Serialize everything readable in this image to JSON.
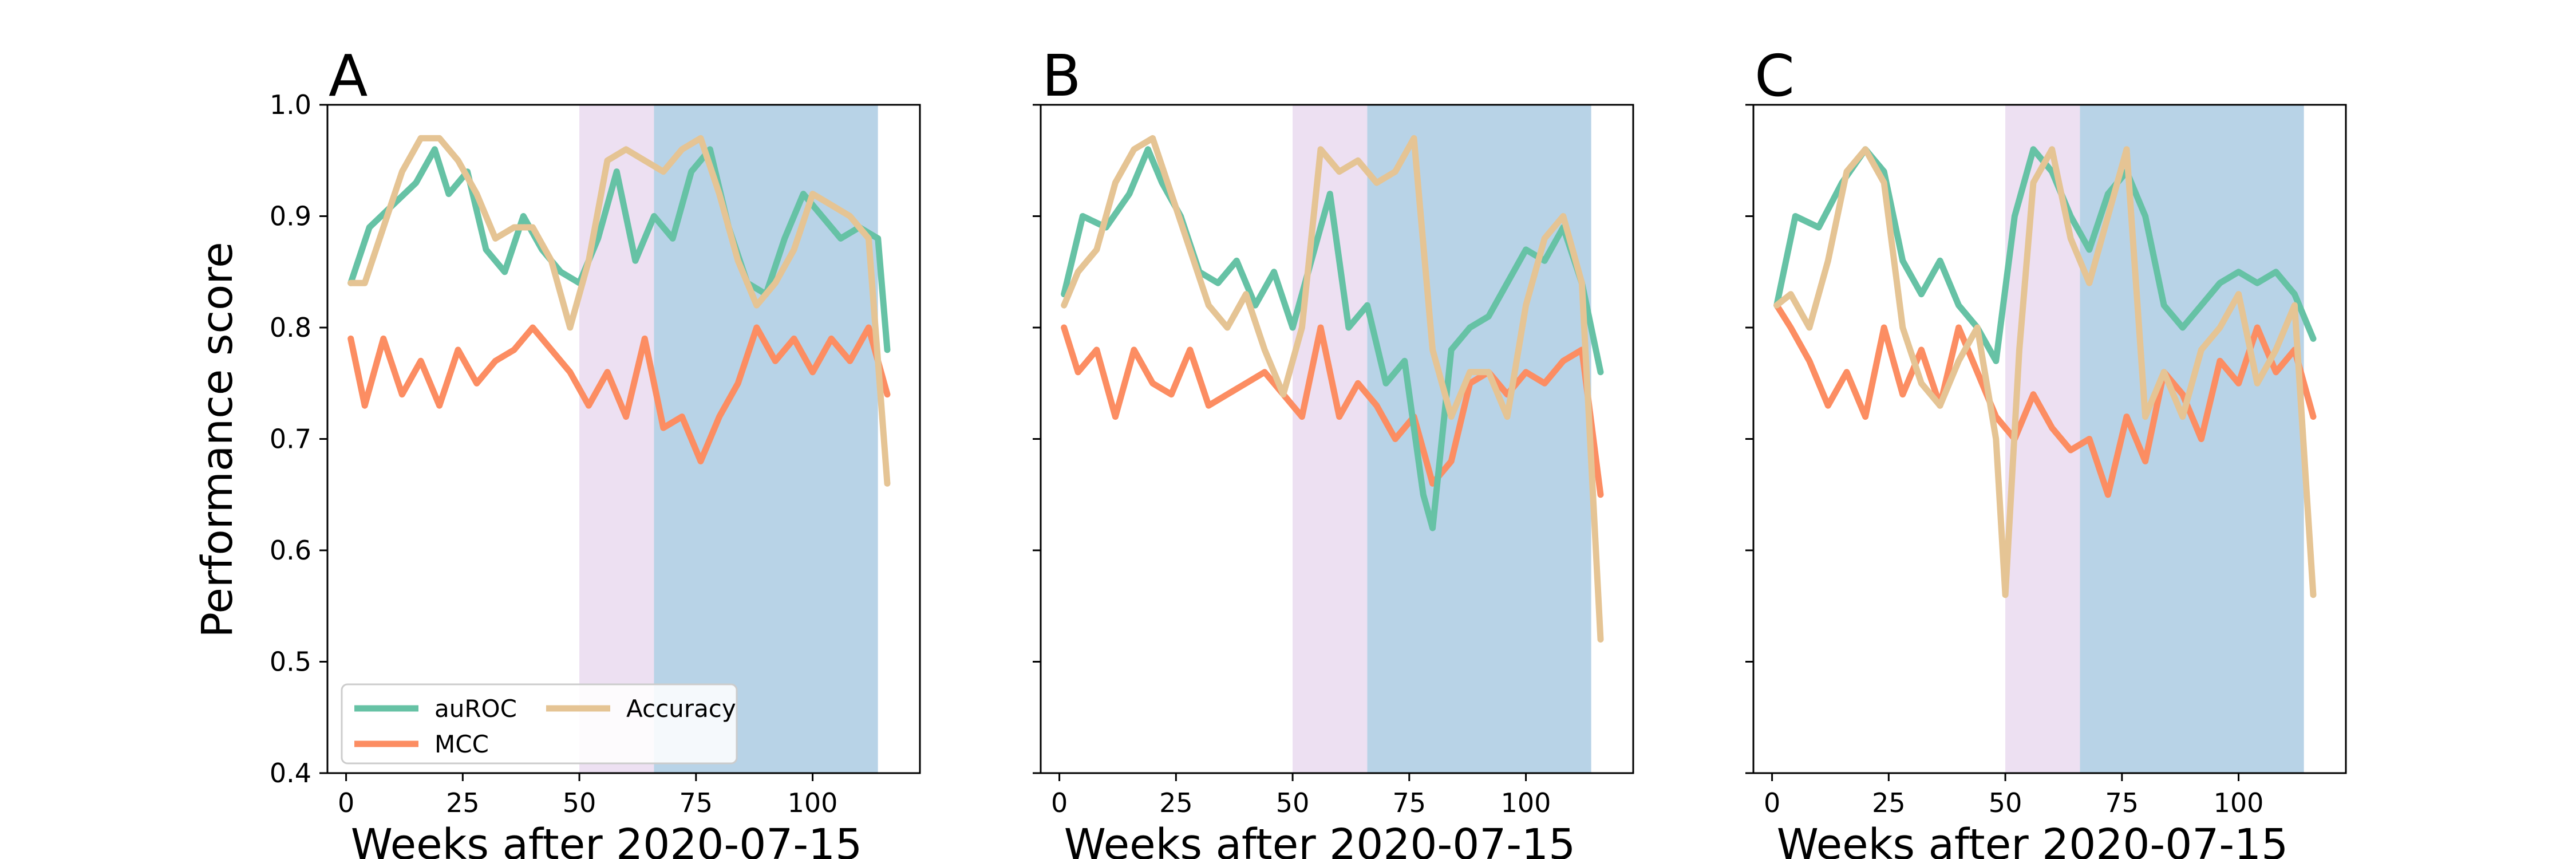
{
  "figure": {
    "ylabel": "Performance score",
    "colors": {
      "auROC": "#66c2a5",
      "MCC": "#fc8d62",
      "Accuracy": "#e5c494",
      "shade_purple": "#e7d6ee",
      "shade_blue": "#b8d3e7"
    }
  },
  "chart_data": [
    {
      "panel_label": "A",
      "type": "line",
      "xlabel": "Weeks after 2020-07-15",
      "ylabel": "Performance score",
      "xlim": [
        -4,
        123
      ],
      "ylim": [
        0.4,
        1.0
      ],
      "xticks": [
        0,
        25,
        50,
        75,
        100
      ],
      "yticks": [
        0.4,
        0.5,
        0.6,
        0.7,
        0.8,
        0.9,
        1.0
      ],
      "ytick_labels": [
        "0.4",
        "0.5",
        "0.6",
        "0.7",
        "0.8",
        "0.9",
        "1.0"
      ],
      "legend": {
        "position": "lower-left",
        "entries": [
          "auROC",
          "MCC",
          "Accuracy"
        ]
      },
      "shaded_regions": [
        {
          "x_start": 50,
          "x_end": 66,
          "color": "purple"
        },
        {
          "x_start": 66,
          "x_end": 114,
          "color": "blue"
        }
      ],
      "series": [
        {
          "name": "auROC",
          "x": [
            1,
            5,
            10,
            15,
            19,
            22,
            26,
            30,
            34,
            38,
            42,
            46,
            50,
            54,
            58,
            62,
            66,
            70,
            74,
            78,
            82,
            86,
            90,
            94,
            98,
            102,
            106,
            110,
            114,
            116
          ],
          "y": [
            0.84,
            0.89,
            0.91,
            0.93,
            0.96,
            0.92,
            0.94,
            0.87,
            0.85,
            0.9,
            0.87,
            0.85,
            0.84,
            0.88,
            0.94,
            0.86,
            0.9,
            0.88,
            0.94,
            0.96,
            0.89,
            0.84,
            0.83,
            0.88,
            0.92,
            0.9,
            0.88,
            0.89,
            0.88,
            0.78
          ]
        },
        {
          "name": "MCC",
          "x": [
            1,
            4,
            8,
            12,
            16,
            20,
            24,
            28,
            32,
            36,
            40,
            44,
            48,
            52,
            56,
            60,
            64,
            68,
            72,
            76,
            80,
            84,
            88,
            92,
            96,
            100,
            104,
            108,
            112,
            116
          ],
          "y": [
            0.79,
            0.73,
            0.79,
            0.74,
            0.77,
            0.73,
            0.78,
            0.75,
            0.77,
            0.78,
            0.8,
            0.78,
            0.76,
            0.73,
            0.76,
            0.72,
            0.79,
            0.71,
            0.72,
            0.68,
            0.72,
            0.75,
            0.8,
            0.77,
            0.79,
            0.76,
            0.79,
            0.77,
            0.8,
            0.74
          ]
        },
        {
          "name": "Accuracy",
          "x": [
            1,
            4,
            8,
            12,
            16,
            20,
            24,
            28,
            32,
            36,
            40,
            44,
            48,
            52,
            56,
            60,
            64,
            68,
            72,
            76,
            80,
            84,
            88,
            92,
            96,
            100,
            104,
            108,
            112,
            116
          ],
          "y": [
            0.84,
            0.84,
            0.89,
            0.94,
            0.97,
            0.97,
            0.95,
            0.92,
            0.88,
            0.89,
            0.89,
            0.86,
            0.8,
            0.86,
            0.95,
            0.96,
            0.95,
            0.94,
            0.96,
            0.97,
            0.92,
            0.86,
            0.82,
            0.84,
            0.87,
            0.92,
            0.91,
            0.9,
            0.88,
            0.66
          ]
        }
      ]
    },
    {
      "panel_label": "B",
      "type": "line",
      "xlabel": "Weeks after 2020-07-15",
      "ylabel": "",
      "xlim": [
        -4,
        123
      ],
      "ylim": [
        0.4,
        1.0
      ],
      "xticks": [
        0,
        25,
        50,
        75,
        100
      ],
      "yticks": [
        0.4,
        0.5,
        0.6,
        0.7,
        0.8,
        0.9,
        1.0
      ],
      "ytick_labels": [],
      "legend": null,
      "shaded_regions": [
        {
          "x_start": 50,
          "x_end": 66,
          "color": "purple"
        },
        {
          "x_start": 66,
          "x_end": 114,
          "color": "blue"
        }
      ],
      "series": [
        {
          "name": "auROC",
          "x": [
            1,
            5,
            10,
            15,
            19,
            22,
            26,
            30,
            34,
            38,
            42,
            46,
            50,
            54,
            58,
            62,
            66,
            70,
            74,
            78,
            80,
            84,
            88,
            92,
            96,
            100,
            104,
            108,
            112,
            116
          ],
          "y": [
            0.83,
            0.9,
            0.89,
            0.92,
            0.96,
            0.93,
            0.9,
            0.85,
            0.84,
            0.86,
            0.82,
            0.85,
            0.8,
            0.86,
            0.92,
            0.8,
            0.82,
            0.75,
            0.77,
            0.65,
            0.62,
            0.78,
            0.8,
            0.81,
            0.84,
            0.87,
            0.86,
            0.89,
            0.84,
            0.76
          ]
        },
        {
          "name": "MCC",
          "x": [
            1,
            4,
            8,
            12,
            16,
            20,
            24,
            28,
            32,
            36,
            40,
            44,
            48,
            52,
            56,
            60,
            64,
            68,
            72,
            76,
            80,
            84,
            88,
            92,
            96,
            100,
            104,
            108,
            112,
            116
          ],
          "y": [
            0.8,
            0.76,
            0.78,
            0.72,
            0.78,
            0.75,
            0.74,
            0.78,
            0.73,
            0.74,
            0.75,
            0.76,
            0.74,
            0.72,
            0.8,
            0.72,
            0.75,
            0.73,
            0.7,
            0.72,
            0.66,
            0.68,
            0.75,
            0.76,
            0.74,
            0.76,
            0.75,
            0.77,
            0.78,
            0.65
          ]
        },
        {
          "name": "Accuracy",
          "x": [
            1,
            4,
            8,
            12,
            16,
            20,
            24,
            28,
            32,
            36,
            40,
            44,
            48,
            52,
            56,
            60,
            64,
            68,
            72,
            76,
            80,
            84,
            88,
            92,
            96,
            100,
            104,
            108,
            112,
            116
          ],
          "y": [
            0.82,
            0.85,
            0.87,
            0.93,
            0.96,
            0.97,
            0.92,
            0.87,
            0.82,
            0.8,
            0.83,
            0.78,
            0.74,
            0.8,
            0.96,
            0.94,
            0.95,
            0.93,
            0.94,
            0.97,
            0.78,
            0.72,
            0.76,
            0.76,
            0.72,
            0.82,
            0.88,
            0.9,
            0.84,
            0.52
          ]
        }
      ]
    },
    {
      "panel_label": "C",
      "type": "line",
      "xlabel": "Weeks after 2020-07-15",
      "ylabel": "",
      "xlim": [
        -4,
        123
      ],
      "ylim": [
        0.4,
        1.0
      ],
      "xticks": [
        0,
        25,
        50,
        75,
        100
      ],
      "yticks": [
        0.4,
        0.5,
        0.6,
        0.7,
        0.8,
        0.9,
        1.0
      ],
      "ytick_labels": [],
      "legend": null,
      "shaded_regions": [
        {
          "x_start": 50,
          "x_end": 66,
          "color": "purple"
        },
        {
          "x_start": 66,
          "x_end": 114,
          "color": "blue"
        }
      ],
      "series": [
        {
          "name": "auROC",
          "x": [
            1,
            5,
            10,
            15,
            20,
            24,
            28,
            32,
            36,
            40,
            44,
            48,
            52,
            56,
            60,
            64,
            68,
            72,
            76,
            80,
            84,
            88,
            92,
            96,
            100,
            104,
            108,
            112,
            116
          ],
          "y": [
            0.82,
            0.9,
            0.89,
            0.93,
            0.96,
            0.94,
            0.86,
            0.83,
            0.86,
            0.82,
            0.8,
            0.77,
            0.9,
            0.96,
            0.94,
            0.9,
            0.87,
            0.92,
            0.94,
            0.9,
            0.82,
            0.8,
            0.82,
            0.84,
            0.85,
            0.84,
            0.85,
            0.83,
            0.79
          ]
        },
        {
          "name": "MCC",
          "x": [
            1,
            4,
            8,
            12,
            16,
            20,
            24,
            28,
            32,
            36,
            40,
            44,
            48,
            52,
            56,
            60,
            64,
            68,
            72,
            76,
            80,
            84,
            88,
            92,
            96,
            100,
            104,
            108,
            112,
            116
          ],
          "y": [
            0.82,
            0.8,
            0.77,
            0.73,
            0.76,
            0.72,
            0.8,
            0.74,
            0.78,
            0.73,
            0.8,
            0.76,
            0.72,
            0.7,
            0.74,
            0.71,
            0.69,
            0.7,
            0.65,
            0.72,
            0.68,
            0.76,
            0.74,
            0.7,
            0.77,
            0.75,
            0.8,
            0.76,
            0.78,
            0.72
          ]
        },
        {
          "name": "Accuracy",
          "x": [
            1,
            4,
            8,
            12,
            16,
            20,
            24,
            28,
            32,
            36,
            40,
            44,
            48,
            50,
            53,
            56,
            60,
            64,
            68,
            72,
            76,
            80,
            84,
            88,
            92,
            96,
            100,
            104,
            108,
            112,
            116
          ],
          "y": [
            0.82,
            0.83,
            0.8,
            0.86,
            0.94,
            0.96,
            0.93,
            0.8,
            0.75,
            0.73,
            0.77,
            0.8,
            0.7,
            0.56,
            0.78,
            0.93,
            0.96,
            0.88,
            0.84,
            0.9,
            0.96,
            0.72,
            0.76,
            0.72,
            0.78,
            0.8,
            0.83,
            0.75,
            0.78,
            0.82,
            0.56
          ]
        }
      ]
    }
  ]
}
